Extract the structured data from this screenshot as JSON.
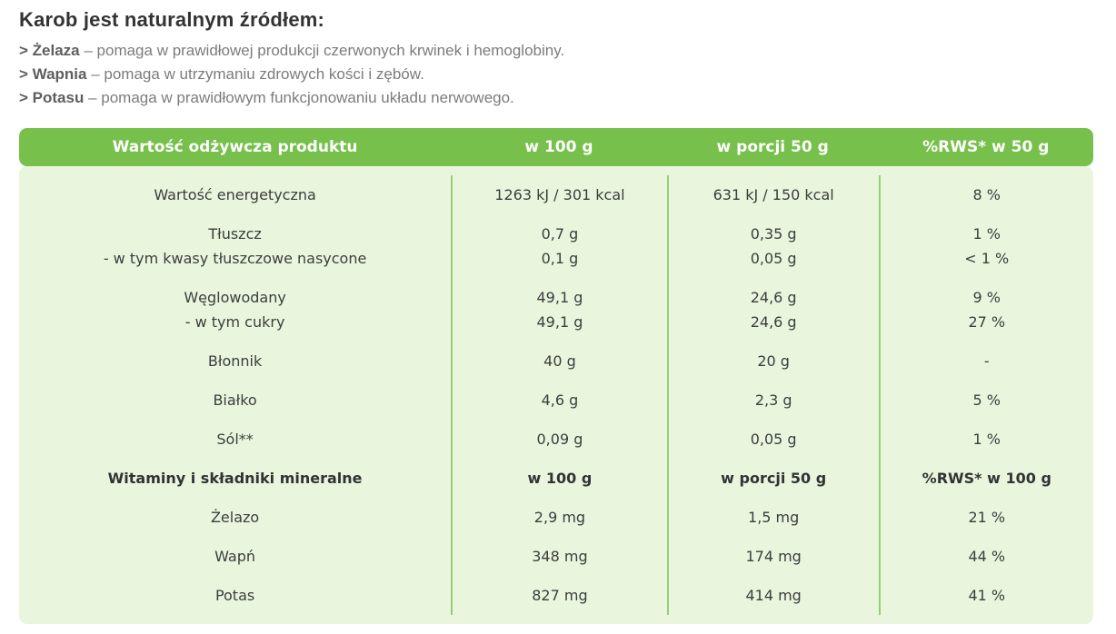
{
  "intro": {
    "title": "Karob jest naturalnym źródłem:",
    "bullets": [
      {
        "term": "> Żelaza",
        "text": "– pomaga w prawidłowej produkcji czerwonych krwinek i hemoglobiny."
      },
      {
        "term": "> Wapnia",
        "text": "– pomaga w utrzymaniu zdrowych kości i zębów."
      },
      {
        "term": "> Potasu",
        "text": "– pomaga w prawidłowym funkcjonowaniu układu nerwowego."
      }
    ]
  },
  "table": {
    "header": [
      "Wartość odżywcza produktu",
      "w 100 g",
      "w porcji 50 g",
      "%RWS* w 50 g"
    ],
    "rows": [
      {
        "bold": false,
        "cells": [
          [
            "Wartość energetyczna"
          ],
          [
            "1263 kJ / 301 kcal"
          ],
          [
            "631 kJ / 150 kcal"
          ],
          [
            "8 %"
          ]
        ]
      },
      {
        "bold": false,
        "cells": [
          [
            "Tłuszcz",
            "- w tym kwasy tłuszczowe nasycone"
          ],
          [
            "0,7 g",
            "0,1 g"
          ],
          [
            "0,35 g",
            "0,05 g"
          ],
          [
            "1 %",
            "< 1 %"
          ]
        ]
      },
      {
        "bold": false,
        "cells": [
          [
            "Węglowodany",
            "- w tym cukry"
          ],
          [
            "49,1 g",
            "49,1 g"
          ],
          [
            "24,6 g",
            "24,6 g"
          ],
          [
            "9 %",
            "27 %"
          ]
        ]
      },
      {
        "bold": false,
        "cells": [
          [
            "Błonnik"
          ],
          [
            "40 g"
          ],
          [
            "20 g"
          ],
          [
            "-"
          ]
        ]
      },
      {
        "bold": false,
        "cells": [
          [
            "Białko"
          ],
          [
            "4,6 g"
          ],
          [
            "2,3 g"
          ],
          [
            "5 %"
          ]
        ]
      },
      {
        "bold": false,
        "cells": [
          [
            "Sól**"
          ],
          [
            "0,09 g"
          ],
          [
            "0,05 g"
          ],
          [
            "1 %"
          ]
        ]
      },
      {
        "bold": true,
        "cells": [
          [
            "Witaminy i składniki mineralne"
          ],
          [
            "w 100 g"
          ],
          [
            "w porcji 50 g"
          ],
          [
            "%RWS* w 100 g"
          ]
        ]
      },
      {
        "bold": false,
        "cells": [
          [
            "Żelazo"
          ],
          [
            "2,9 mg"
          ],
          [
            "1,5 mg"
          ],
          [
            "21 %"
          ]
        ]
      },
      {
        "bold": false,
        "cells": [
          [
            "Wapń"
          ],
          [
            "348 mg"
          ],
          [
            "174 mg"
          ],
          [
            "44 %"
          ]
        ]
      },
      {
        "bold": false,
        "cells": [
          [
            "Potas"
          ],
          [
            "827 mg"
          ],
          [
            "414 mg"
          ],
          [
            "41 %"
          ]
        ]
      }
    ]
  },
  "colors": {
    "header_green": "#76c04b",
    "body_green": "#e9f6dd",
    "divider_green": "#98cd77",
    "header_text": "#ffffff",
    "body_text": "#3d3d3d"
  }
}
